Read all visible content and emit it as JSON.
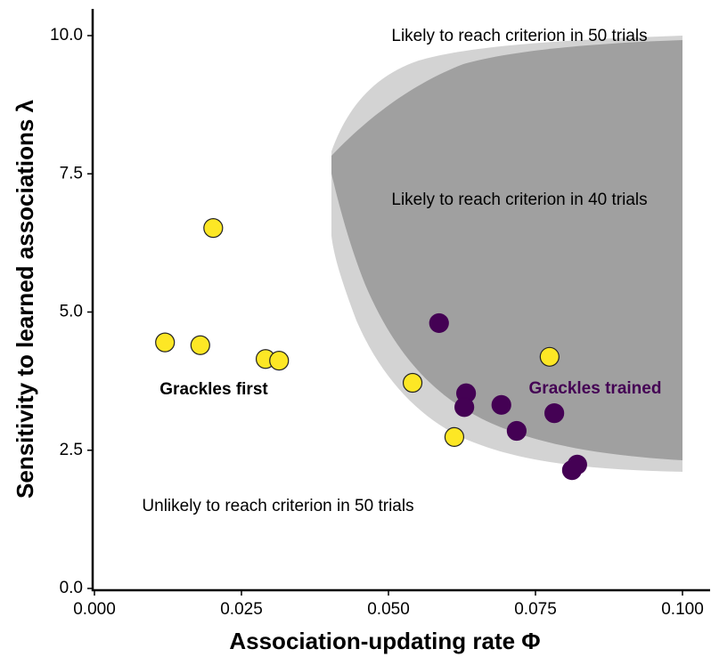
{
  "chart_data": {
    "type": "scatter",
    "xlabel": "Association-updating rate Φ",
    "ylabel": "Sensitivity to learned associations λ",
    "xlim": [
      0,
      0.1
    ],
    "ylim": [
      0,
      10
    ],
    "xticks": [
      {
        "value": 0,
        "label": "0.000"
      },
      {
        "value": 0.025,
        "label": "0.025"
      },
      {
        "value": 0.05,
        "label": "0.050"
      },
      {
        "value": 0.075,
        "label": "0.075"
      },
      {
        "value": 0.1,
        "label": "0.100"
      }
    ],
    "yticks": [
      {
        "value": 0,
        "label": "0.0"
      },
      2.5,
      {
        "value": 5,
        "label": "5.0"
      },
      7.5,
      {
        "value": 10,
        "label": "10.0"
      }
    ],
    "annotations": [
      "Likely to reach criterion in 50 trials",
      "Likely to reach criterion in 40 trials",
      "Unlikely to reach criterion in 50 trials"
    ],
    "series": [
      {
        "name": "Grackles first",
        "color": "#fde725",
        "x": [
          0.012,
          0.018,
          0.0202,
          0.0291,
          0.0314,
          0.0541,
          0.0612,
          0.0774
        ],
        "y": [
          4.45,
          4.4,
          6.52,
          4.15,
          4.12,
          3.72,
          2.74,
          4.19
        ]
      },
      {
        "name": "Grackles trained",
        "color": "#440154",
        "x": [
          0.0586,
          0.0632,
          0.0629,
          0.0692,
          0.0718,
          0.0782,
          0.0812,
          0.0821
        ],
        "y": [
          4.8,
          3.53,
          3.28,
          3.32,
          2.85,
          3.17,
          2.14,
          2.24
        ]
      }
    ]
  }
}
